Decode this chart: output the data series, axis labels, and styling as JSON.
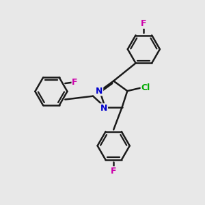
{
  "background_color": "#e8e8e8",
  "bond_color": "#1a1a1a",
  "N_color": "#0000cc",
  "F_color": "#cc00aa",
  "Cl_color": "#00aa00",
  "bond_width": 1.8,
  "figsize": [
    3.0,
    3.0
  ],
  "dpi": 100,
  "xlim": [
    0,
    10
  ],
  "ylim": [
    0,
    10
  ]
}
